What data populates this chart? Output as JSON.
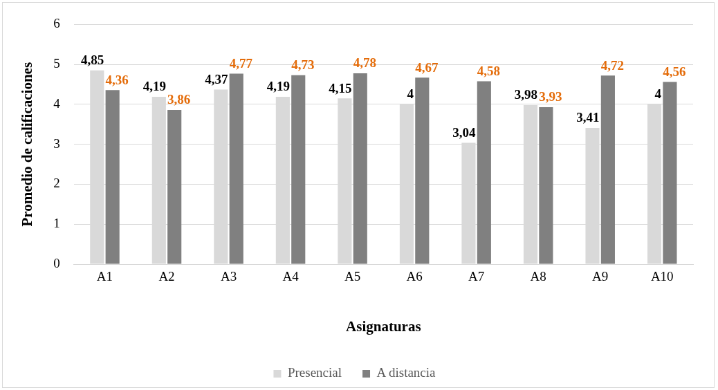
{
  "chart_data": {
    "type": "bar",
    "xlabel": "Asignaturas",
    "ylabel": "Promedio de calificaciones",
    "categories": [
      "A1",
      "A2",
      "A3",
      "A4",
      "A5",
      "A6",
      "A7",
      "A8",
      "A9",
      "A10"
    ],
    "series": [
      {
        "name": "Presencial",
        "color": "#d9d9d9",
        "values": [
          4.85,
          4.19,
          4.37,
          4.19,
          4.15,
          4,
          3.04,
          3.98,
          3.41,
          4
        ],
        "value_labels": [
          "4,85",
          "4,19",
          "4,37",
          "4,19",
          "4,15",
          "4",
          "3,04",
          "3,98",
          "3,41",
          "4"
        ]
      },
      {
        "name": "A distancia",
        "color": "#808080",
        "values": [
          4.36,
          3.86,
          4.77,
          4.73,
          4.78,
          4.67,
          4.58,
          3.93,
          4.72,
          4.56
        ],
        "value_labels": [
          "4,36",
          "3,86",
          "4,77",
          "4,73",
          "4,78",
          "4,67",
          "4,58",
          "3,93",
          "4,72",
          "4,56"
        ]
      }
    ],
    "ylim": [
      0,
      6
    ],
    "yticks": [
      0,
      1,
      2,
      3,
      4,
      5,
      6
    ],
    "grid": "y",
    "legend": "bottom"
  }
}
